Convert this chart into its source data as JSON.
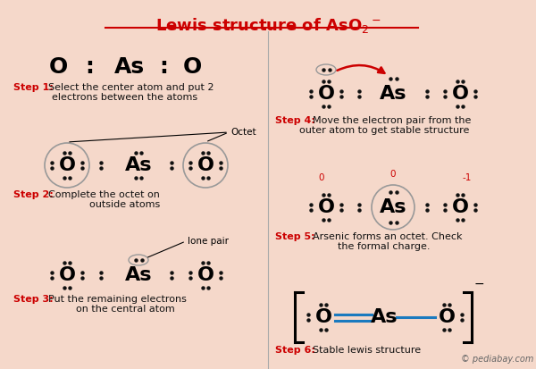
{
  "bg_color": "#f5d8ca",
  "title_color": "#cc0000",
  "step_label_color": "#cc0000",
  "text_color": "#111111",
  "dot_color": "#111111",
  "blue_bond_color": "#1a7abf",
  "divider_color": "#aaaaaa",
  "circle_color": "#999999",
  "arrow_color": "#cc0000",
  "charge_color": "#cc0000",
  "watermark": "© pediabay.com",
  "step1_label": "Step 1:",
  "step1_text": "Select the center atom and put 2\nelectrons between the atoms",
  "step2_label": "Step 2:",
  "step2_text": "Complete the octet on\noutside atoms",
  "step3_label": "Step 3:",
  "step3_text": "Put the remaining electrons\non the central atom",
  "step4_label": "Step 4:",
  "step4_text": "Move the electron pair from the\nouter atom to get stable structure",
  "step5_label": "Step 5:",
  "step5_text": "Arsenic forms an octet. Check\nthe formal charge.",
  "step6_label": "Step 6:",
  "step6_text": "Stable lewis structure"
}
